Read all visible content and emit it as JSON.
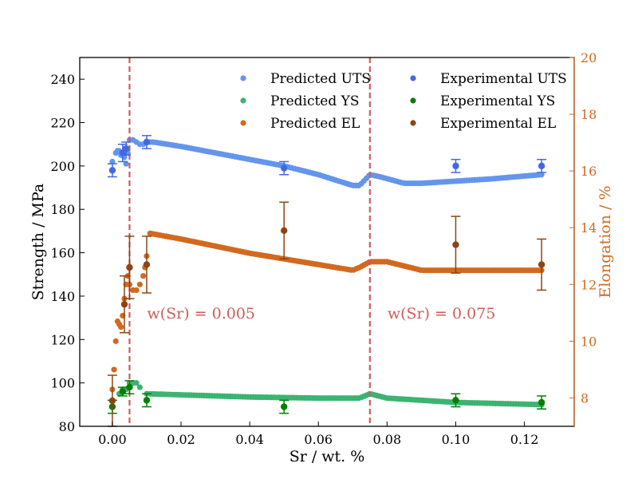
{
  "chart_data": {
    "type": "scatter",
    "xlabel": "Sr / wt. %",
    "ylabel_left": "Strength / MPa",
    "ylabel_right": "Elongation / %",
    "xlim": [
      -0.0095,
      0.1345
    ],
    "ylim_left": [
      80,
      250
    ],
    "ylim_right": [
      7,
      20
    ],
    "x_ticks": [
      "0.00",
      "0.02",
      "0.04",
      "0.06",
      "0.08",
      "0.10",
      "0.12"
    ],
    "x_tick_values": [
      0,
      0.02,
      0.04,
      0.06,
      0.08,
      0.1,
      0.12
    ],
    "y_left_ticks": [
      80,
      100,
      120,
      140,
      160,
      180,
      200,
      220,
      240
    ],
    "y_right_ticks": [
      8,
      10,
      12,
      14,
      16,
      18,
      20
    ],
    "grid": false,
    "legend_position": "top-right",
    "colors": {
      "predicted_uts": "#6495ED",
      "predicted_ys": "#3CB371",
      "predicted_el": "#D2691E",
      "experimental_uts": "#4169E1",
      "experimental_ys": "#008000",
      "experimental_el": "#8B4513",
      "vline": "#CD5C5C",
      "right_axis": "#D2691E"
    },
    "vlines": [
      {
        "x": 0.005,
        "label": "w(Sr) = 0.005"
      },
      {
        "x": 0.075,
        "label": "w(Sr) = 0.075"
      }
    ],
    "predicted_series": [
      {
        "name": "Predicted UTS",
        "axis": "left",
        "color": "#6495ED",
        "points": [
          [
            0.0,
            202
          ],
          [
            0.001,
            206
          ],
          [
            0.0015,
            207
          ],
          [
            0.002,
            207
          ],
          [
            0.0025,
            205
          ],
          [
            0.003,
            206
          ],
          [
            0.0035,
            204
          ],
          [
            0.004,
            201
          ],
          [
            0.0045,
            206
          ],
          [
            0.005,
            212
          ],
          [
            0.006,
            212
          ],
          [
            0.007,
            211
          ],
          [
            0.008,
            210
          ],
          [
            0.009,
            210
          ],
          [
            0.01,
            211
          ],
          [
            0.012,
            211
          ],
          [
            0.02,
            209
          ],
          [
            0.03,
            206
          ],
          [
            0.04,
            203
          ],
          [
            0.05,
            200
          ],
          [
            0.06,
            196
          ],
          [
            0.07,
            191
          ],
          [
            0.072,
            191
          ],
          [
            0.075,
            196
          ],
          [
            0.078,
            195
          ],
          [
            0.085,
            192
          ],
          [
            0.09,
            192
          ],
          [
            0.1,
            193
          ],
          [
            0.11,
            194
          ],
          [
            0.125,
            196
          ]
        ]
      },
      {
        "name": "Predicted YS",
        "axis": "left",
        "color": "#3CB371",
        "points": [
          [
            0.0,
            92
          ],
          [
            0.002,
            95
          ],
          [
            0.003,
            97
          ],
          [
            0.004,
            97
          ],
          [
            0.005,
            100
          ],
          [
            0.006,
            100
          ],
          [
            0.007,
            100
          ],
          [
            0.008,
            98
          ],
          [
            0.01,
            95
          ],
          [
            0.02,
            94.5
          ],
          [
            0.04,
            93.5
          ],
          [
            0.06,
            93
          ],
          [
            0.072,
            93
          ],
          [
            0.075,
            95
          ],
          [
            0.08,
            93
          ],
          [
            0.09,
            92
          ],
          [
            0.1,
            91
          ],
          [
            0.125,
            90
          ]
        ]
      },
      {
        "name": "Predicted EL",
        "axis": "right",
        "color": "#D2691E",
        "points": [
          [
            0.0,
            8.3
          ],
          [
            0.0005,
            9.0
          ],
          [
            0.001,
            10.0
          ],
          [
            0.0015,
            10.7
          ],
          [
            0.002,
            10.6
          ],
          [
            0.0025,
            10.5
          ],
          [
            0.003,
            10.9
          ],
          [
            0.0035,
            11.5
          ],
          [
            0.004,
            12.0
          ],
          [
            0.0045,
            12.3
          ],
          [
            0.005,
            12.0
          ],
          [
            0.006,
            11.8
          ],
          [
            0.007,
            11.8
          ],
          [
            0.008,
            12.0
          ],
          [
            0.009,
            12.3
          ],
          [
            0.0095,
            12.6
          ],
          [
            0.01,
            13.0
          ],
          [
            0.011,
            13.8
          ],
          [
            0.02,
            13.6
          ],
          [
            0.04,
            13.1
          ],
          [
            0.06,
            12.7
          ],
          [
            0.07,
            12.5
          ],
          [
            0.072,
            12.6
          ],
          [
            0.075,
            12.8
          ],
          [
            0.08,
            12.8
          ],
          [
            0.09,
            12.5
          ],
          [
            0.1,
            12.5
          ],
          [
            0.125,
            12.5
          ]
        ]
      }
    ],
    "experimental_series": [
      {
        "name": "Experimental UTS",
        "axis": "left",
        "color": "#4169E1",
        "points": [
          {
            "x": 0.0,
            "y": 198,
            "err": 3
          },
          {
            "x": 0.003,
            "y": 206,
            "err": 4
          },
          {
            "x": 0.004,
            "y": 208,
            "err": 3
          },
          {
            "x": 0.01,
            "y": 211,
            "err": 3
          },
          {
            "x": 0.05,
            "y": 199,
            "err": 3
          },
          {
            "x": 0.1,
            "y": 200,
            "err": 3
          },
          {
            "x": 0.125,
            "y": 200,
            "err": 3
          }
        ]
      },
      {
        "name": "Experimental YS",
        "axis": "left",
        "color": "#008000",
        "points": [
          {
            "x": 0.0,
            "y": 89,
            "err": 3
          },
          {
            "x": 0.003,
            "y": 96,
            "err": 2
          },
          {
            "x": 0.005,
            "y": 98,
            "err": 3
          },
          {
            "x": 0.01,
            "y": 92,
            "err": 3
          },
          {
            "x": 0.05,
            "y": 89,
            "err": 3
          },
          {
            "x": 0.1,
            "y": 92,
            "err": 3
          },
          {
            "x": 0.125,
            "y": 91,
            "err": 3
          }
        ]
      },
      {
        "name": "Experimental EL",
        "axis": "right",
        "color": "#8B4513",
        "points": [
          {
            "x": 0.0,
            "y": 7.9,
            "err": 0.9
          },
          {
            "x": 0.0035,
            "y": 11.3,
            "err": 1.0
          },
          {
            "x": 0.005,
            "y": 12.6,
            "err": 1.1
          },
          {
            "x": 0.01,
            "y": 12.7,
            "err": 1.0
          },
          {
            "x": 0.05,
            "y": 13.9,
            "err": 1.0
          },
          {
            "x": 0.1,
            "y": 13.4,
            "err": 1.0
          },
          {
            "x": 0.125,
            "y": 12.7,
            "err": 0.9
          }
        ]
      }
    ],
    "legend": [
      {
        "label": "Predicted UTS",
        "color": "#6495ED"
      },
      {
        "label": "Experimental UTS",
        "color": "#4169E1"
      },
      {
        "label": "Predicted YS",
        "color": "#3CB371"
      },
      {
        "label": "Experimental YS",
        "color": "#008000"
      },
      {
        "label": "Predicted EL",
        "color": "#D2691E"
      },
      {
        "label": "Experimental EL",
        "color": "#8B4513"
      }
    ]
  }
}
